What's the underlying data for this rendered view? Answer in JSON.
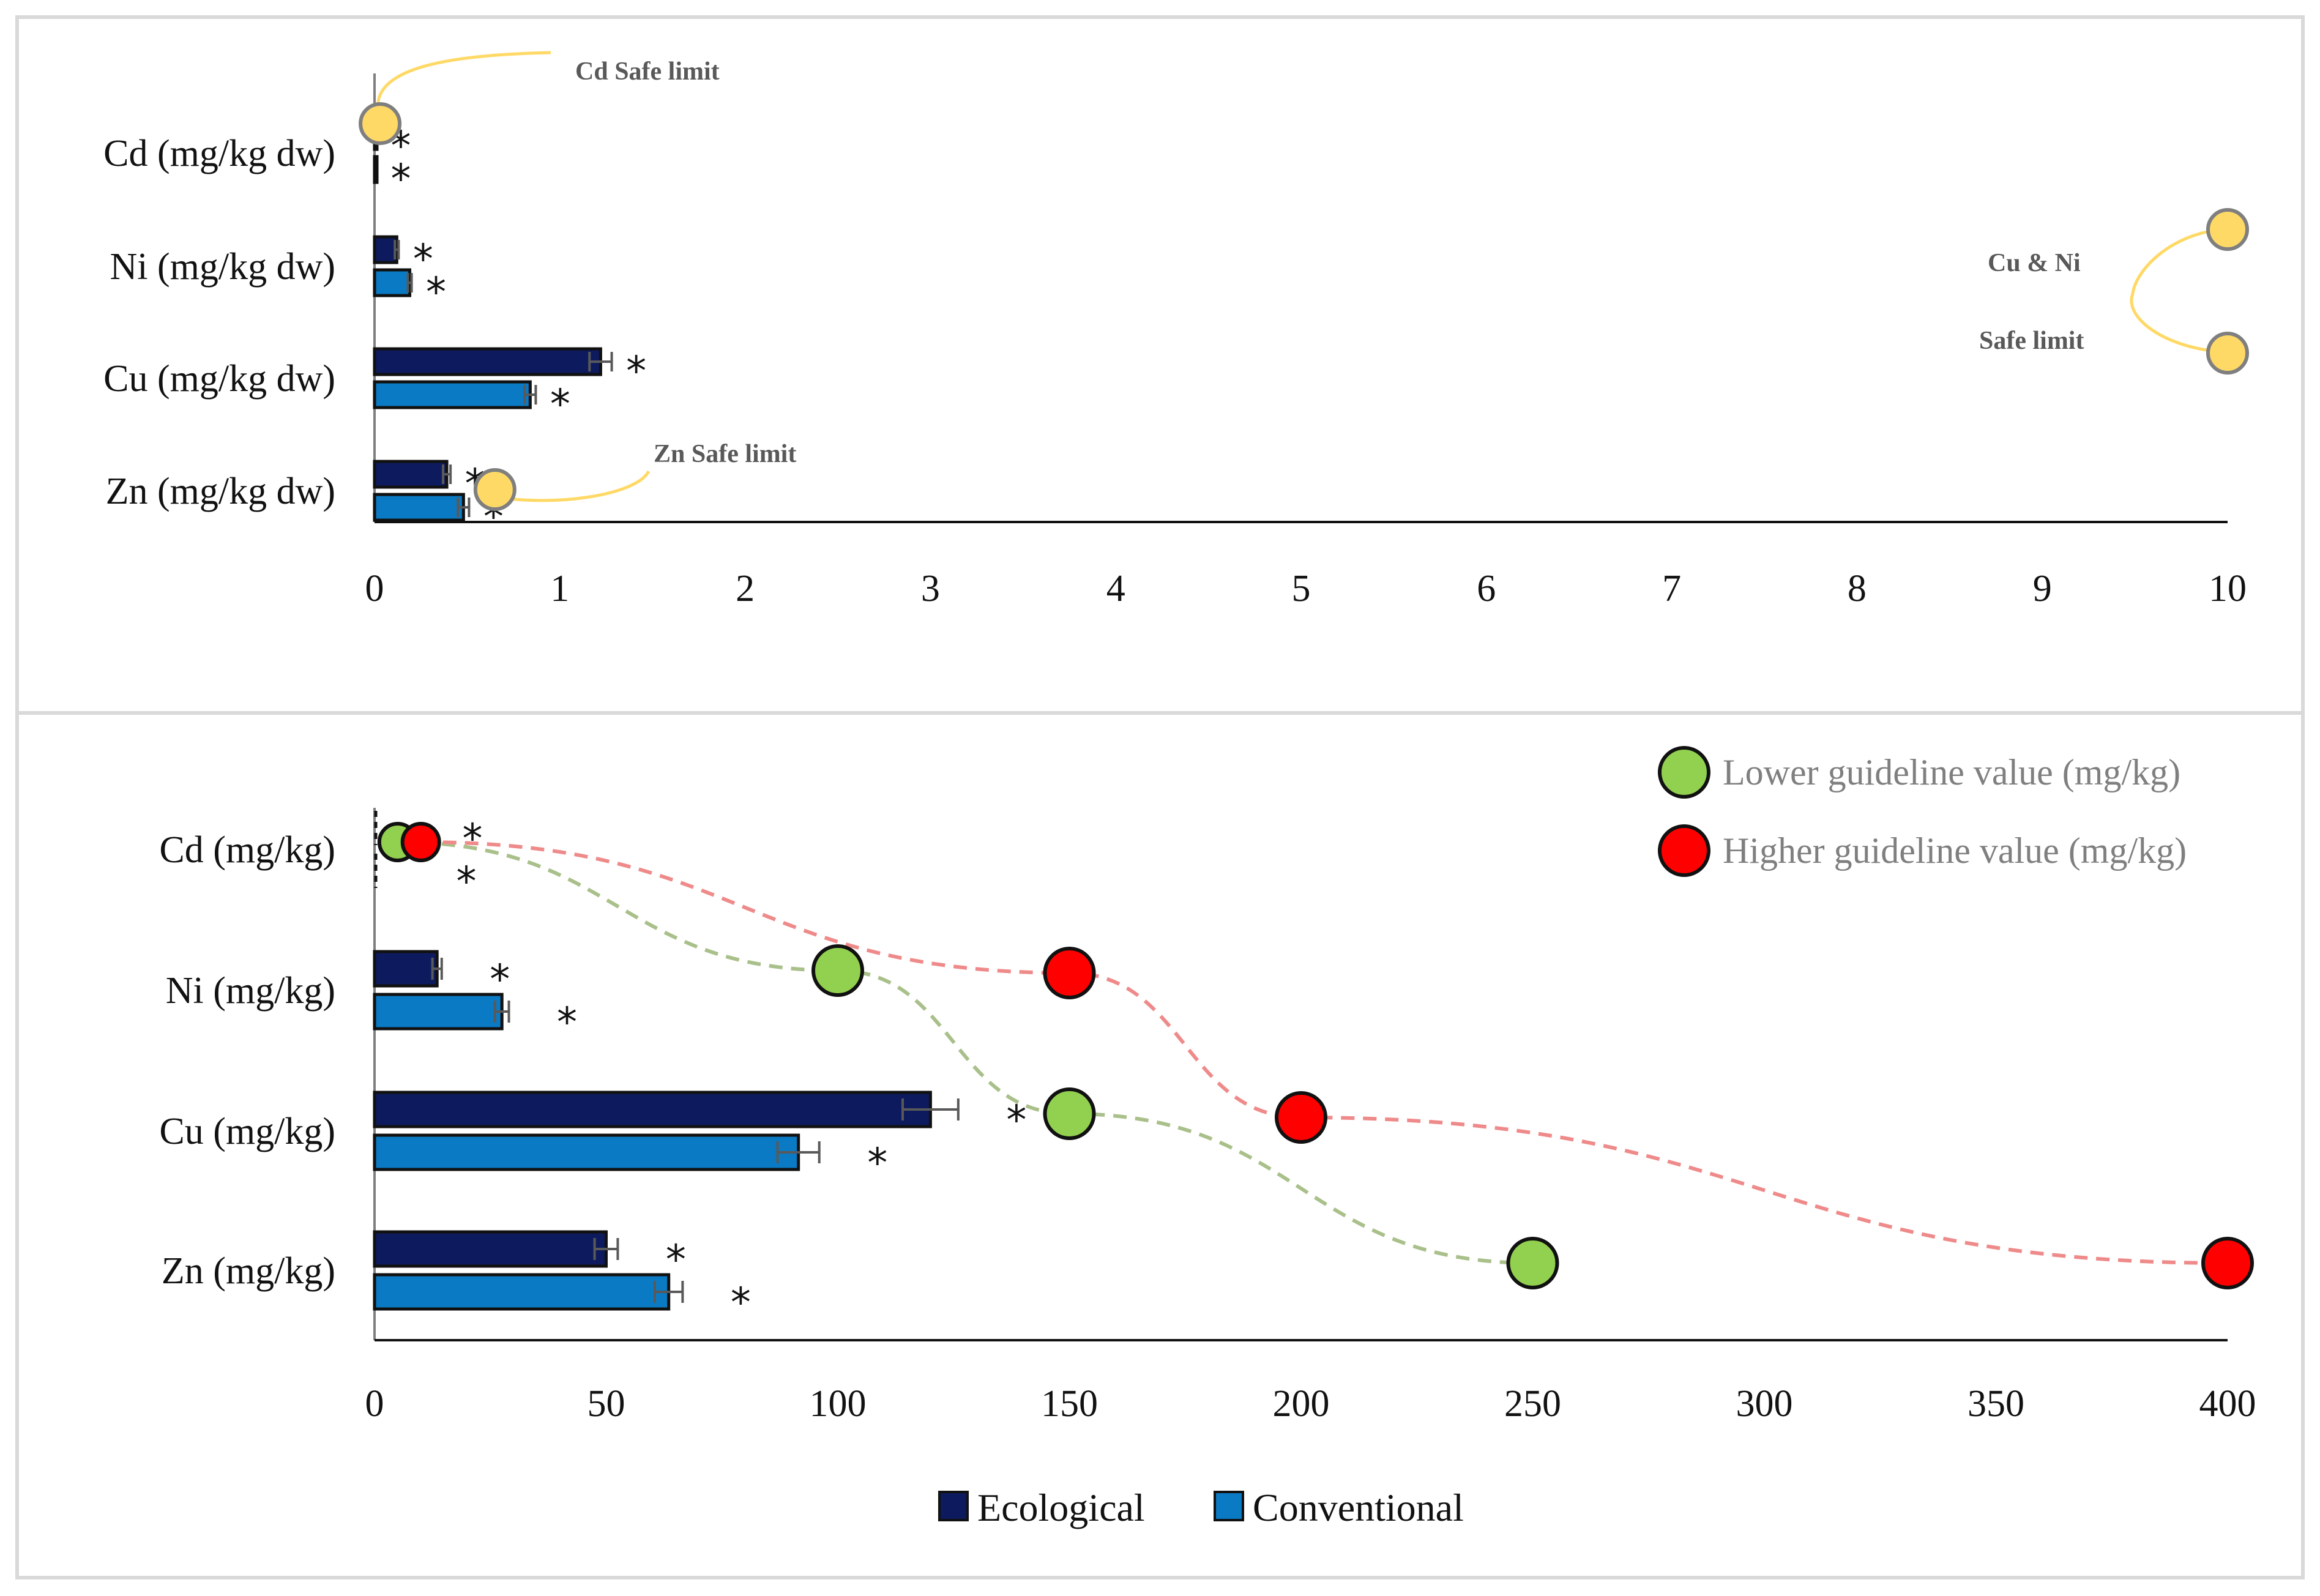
{
  "chart_data": [
    {
      "type": "bar",
      "orientation": "horizontal",
      "panel": "top",
      "categories": [
        "Cd (mg/kg dw)",
        "Ni (mg/kg dw)",
        "Cu (mg/kg dw)",
        "Zn (mg/kg dw)"
      ],
      "series": [
        {
          "name": "Ecological",
          "color": "#0d1b5e",
          "values": [
            0.01,
            0.12,
            1.22,
            0.39
          ],
          "errors": [
            0.0,
            0.01,
            0.06,
            0.02
          ]
        },
        {
          "name": "Conventional",
          "color": "#0a7ac4",
          "values": [
            0.01,
            0.19,
            0.84,
            0.48
          ],
          "errors": [
            0.0,
            0.01,
            0.03,
            0.03
          ]
        }
      ],
      "significance_marker": "*",
      "xlim": [
        0,
        10
      ],
      "xticks": [
        "0",
        "1",
        "2",
        "3",
        "4",
        "5",
        "6",
        "7",
        "8",
        "9",
        "10"
      ],
      "safe_limits": [
        {
          "label": "Cd Safe limit",
          "metal": "Cd",
          "value": 0.03
        },
        {
          "label": "Zn Safe limit",
          "metal": "Zn",
          "value": 0.65
        },
        {
          "label_line1": "Cu & Ni",
          "label_line2": "Safe limit",
          "metals": [
            "Ni",
            "Cu"
          ],
          "value": 10
        }
      ],
      "safe_limit_color": "#ffd966"
    },
    {
      "type": "bar",
      "orientation": "horizontal",
      "panel": "bottom",
      "categories": [
        "Cd (mg/kg)",
        "Ni (mg/kg)",
        "Cu (mg/kg)",
        "Zn (mg/kg)"
      ],
      "series": [
        {
          "name": "Ecological",
          "color": "#0d1b5e",
          "values": [
            0.3,
            13.5,
            120,
            50
          ],
          "errors": [
            0.0,
            1.0,
            6.0,
            2.5
          ]
        },
        {
          "name": "Conventional",
          "color": "#0a7ac4",
          "values": [
            0.4,
            27.5,
            91.5,
            63.5
          ],
          "errors": [
            0.0,
            1.5,
            4.5,
            3.0
          ]
        }
      ],
      "significance_marker": "*",
      "xlim": [
        0,
        400
      ],
      "xticks": [
        "0",
        "50",
        "100",
        "150",
        "200",
        "250",
        "300",
        "350",
        "400"
      ],
      "guideline_series": [
        {
          "name": "Lower guideline value (mg/kg)",
          "color": "#92d050",
          "line_color": "#a9c08a",
          "values": [
            5,
            100,
            150,
            250
          ]
        },
        {
          "name": "Higher guideline value (mg/kg)",
          "color": "#ff0000",
          "line_color": "#ef8a8a",
          "values": [
            10,
            150,
            200,
            400
          ]
        }
      ]
    }
  ],
  "legend": {
    "items": [
      {
        "name": "Ecological",
        "color": "#0d1b5e"
      },
      {
        "name": "Conventional",
        "color": "#0a7ac4"
      }
    ]
  }
}
